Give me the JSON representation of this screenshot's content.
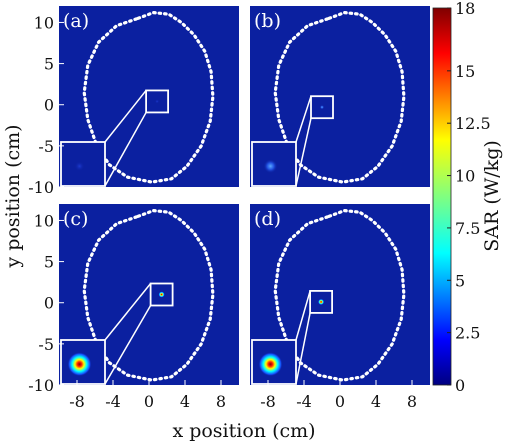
{
  "chart_data": {
    "type": "heatmap",
    "xlabel": "x position (cm)",
    "ylabel": "y position (cm)",
    "xlim": [
      -10,
      10
    ],
    "ylim": [
      -10,
      12
    ],
    "x_ticks": [
      "-8",
      "-4",
      "0",
      "4",
      "8"
    ],
    "y_ticks": [
      "10",
      "5",
      "0",
      "-5",
      "-10"
    ],
    "colorbar": {
      "label": "SAR (W/kg)",
      "min": 0,
      "max": 18,
      "ticks": [
        "18",
        "15",
        "12.5",
        "10",
        "7.5",
        "5",
        "2.5",
        "0"
      ]
    },
    "panels": [
      {
        "label": "(a)",
        "hotspot": {
          "x": 0.9,
          "y": 0.4
        },
        "peak_sar": 0.3
      },
      {
        "label": "(b)",
        "hotspot": {
          "x": -2.0,
          "y": -0.3
        },
        "peak_sar": 1.5
      },
      {
        "label": "(c)",
        "hotspot": {
          "x": 1.4,
          "y": 1.0
        },
        "peak_sar": 18
      },
      {
        "label": "(d)",
        "hotspot": {
          "x": -2.1,
          "y": 0.1
        },
        "peak_sar": 18
      }
    ]
  },
  "colors": {
    "background": "#0b20a0",
    "outline": "#ffffff",
    "colormap": "jet"
  }
}
